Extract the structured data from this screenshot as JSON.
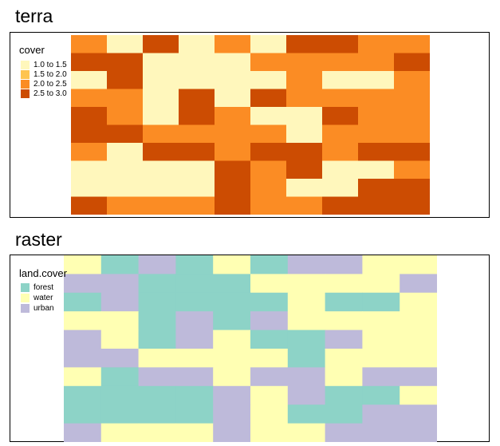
{
  "chart_data": [
    {
      "type": "heatmap",
      "title": "terra",
      "legend_title": "cover",
      "legend_position": "top-left",
      "legend": [
        {
          "label": "1.0 to 1.5",
          "color": "#FFF7BC"
        },
        {
          "label": "1.5 to 2.0",
          "color": "#FEC44F"
        },
        {
          "label": "2.0 to 2.5",
          "color": "#FB8C24"
        },
        {
          "label": "2.5 to 3.0",
          "color": "#CC4C02"
        }
      ],
      "grid": [
        [
          2,
          0,
          3,
          0,
          2,
          0,
          3,
          3,
          2,
          2
        ],
        [
          3,
          3,
          0,
          0,
          0,
          2,
          2,
          2,
          2,
          3
        ],
        [
          0,
          3,
          0,
          0,
          0,
          0,
          2,
          0,
          0,
          2
        ],
        [
          2,
          2,
          0,
          3,
          0,
          3,
          2,
          2,
          2,
          2
        ],
        [
          3,
          2,
          0,
          3,
          2,
          0,
          0,
          3,
          2,
          2
        ],
        [
          3,
          3,
          2,
          2,
          2,
          2,
          0,
          2,
          2,
          2
        ],
        [
          2,
          0,
          3,
          3,
          2,
          3,
          3,
          2,
          3,
          3
        ],
        [
          0,
          0,
          0,
          0,
          3,
          2,
          3,
          0,
          0,
          2
        ],
        [
          0,
          0,
          0,
          0,
          3,
          2,
          0,
          0,
          3,
          3
        ],
        [
          3,
          2,
          2,
          2,
          3,
          2,
          2,
          3,
          3,
          3
        ]
      ]
    },
    {
      "type": "heatmap",
      "title": "raster",
      "legend_title": "land.cover",
      "legend_position": "top-left",
      "legend": [
        {
          "label": "forest",
          "color": "#8DD3C7"
        },
        {
          "label": "water",
          "color": "#FFFFB3"
        },
        {
          "label": "urban",
          "color": "#BEBADA"
        }
      ],
      "grid": [
        [
          1,
          0,
          2,
          0,
          1,
          0,
          2,
          2,
          1,
          1
        ],
        [
          2,
          2,
          0,
          0,
          0,
          1,
          1,
          1,
          1,
          2
        ],
        [
          0,
          2,
          0,
          0,
          0,
          0,
          1,
          0,
          0,
          1
        ],
        [
          1,
          1,
          0,
          2,
          0,
          2,
          1,
          1,
          1,
          1
        ],
        [
          2,
          1,
          0,
          2,
          1,
          0,
          0,
          2,
          1,
          1
        ],
        [
          2,
          2,
          1,
          1,
          1,
          1,
          0,
          1,
          1,
          1
        ],
        [
          1,
          0,
          2,
          2,
          1,
          2,
          2,
          1,
          2,
          2
        ],
        [
          0,
          0,
          0,
          0,
          2,
          1,
          2,
          0,
          0,
          1
        ],
        [
          0,
          0,
          0,
          0,
          2,
          1,
          0,
          0,
          2,
          2
        ],
        [
          2,
          1,
          1,
          1,
          2,
          1,
          1,
          2,
          2,
          2
        ]
      ]
    }
  ]
}
